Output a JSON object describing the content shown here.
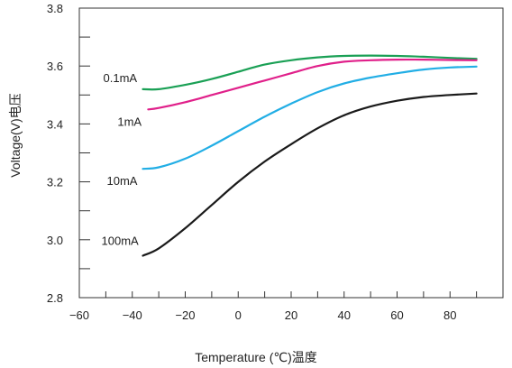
{
  "chart_data": {
    "type": "line",
    "title": "",
    "xlabel": "Temperature (℃)温度",
    "ylabel": "Voltage(V)电压",
    "xlim": [
      -60,
      100
    ],
    "ylim": [
      2.8,
      3.8
    ],
    "xticks": [
      -60,
      -40,
      -20,
      0,
      20,
      40,
      60,
      80
    ],
    "yticks": [
      2.8,
      3.0,
      3.2,
      3.4,
      3.6,
      3.8
    ],
    "xtick_labels": [
      "−60",
      "−40",
      "−20",
      "0",
      "20",
      "40",
      "60",
      "80"
    ],
    "ytick_labels": [
      "2.8",
      "3.0",
      "3.2",
      "3.4",
      "3.6",
      "3.8"
    ],
    "grid": false,
    "legend": "inline-labels",
    "series": [
      {
        "name": "0.1mA",
        "color": "#1aa055",
        "x": [
          -36,
          -30,
          -20,
          -10,
          0,
          10,
          20,
          30,
          40,
          50,
          60,
          70,
          80,
          90
        ],
        "y": [
          3.52,
          3.52,
          3.535,
          3.555,
          3.58,
          3.605,
          3.62,
          3.63,
          3.635,
          3.636,
          3.635,
          3.632,
          3.628,
          3.625
        ]
      },
      {
        "name": "1mA",
        "color": "#e0208a",
        "x": [
          -34,
          -30,
          -20,
          -10,
          0,
          10,
          20,
          30,
          40,
          50,
          60,
          70,
          80,
          90
        ],
        "y": [
          3.45,
          3.455,
          3.475,
          3.5,
          3.525,
          3.55,
          3.575,
          3.6,
          3.615,
          3.62,
          3.622,
          3.622,
          3.621,
          3.62
        ]
      },
      {
        "name": "10mA",
        "color": "#22aee5",
        "x": [
          -36,
          -30,
          -20,
          -10,
          0,
          10,
          20,
          30,
          40,
          50,
          60,
          70,
          80,
          90
        ],
        "y": [
          3.245,
          3.25,
          3.28,
          3.325,
          3.375,
          3.425,
          3.47,
          3.51,
          3.54,
          3.56,
          3.575,
          3.588,
          3.595,
          3.598
        ]
      },
      {
        "name": "100mA",
        "color": "#1a1a1a",
        "x": [
          -36,
          -30,
          -20,
          -10,
          0,
          10,
          20,
          30,
          40,
          50,
          60,
          70,
          80,
          90
        ],
        "y": [
          2.945,
          2.97,
          3.04,
          3.12,
          3.2,
          3.27,
          3.33,
          3.385,
          3.43,
          3.46,
          3.48,
          3.493,
          3.5,
          3.505
        ]
      }
    ]
  }
}
